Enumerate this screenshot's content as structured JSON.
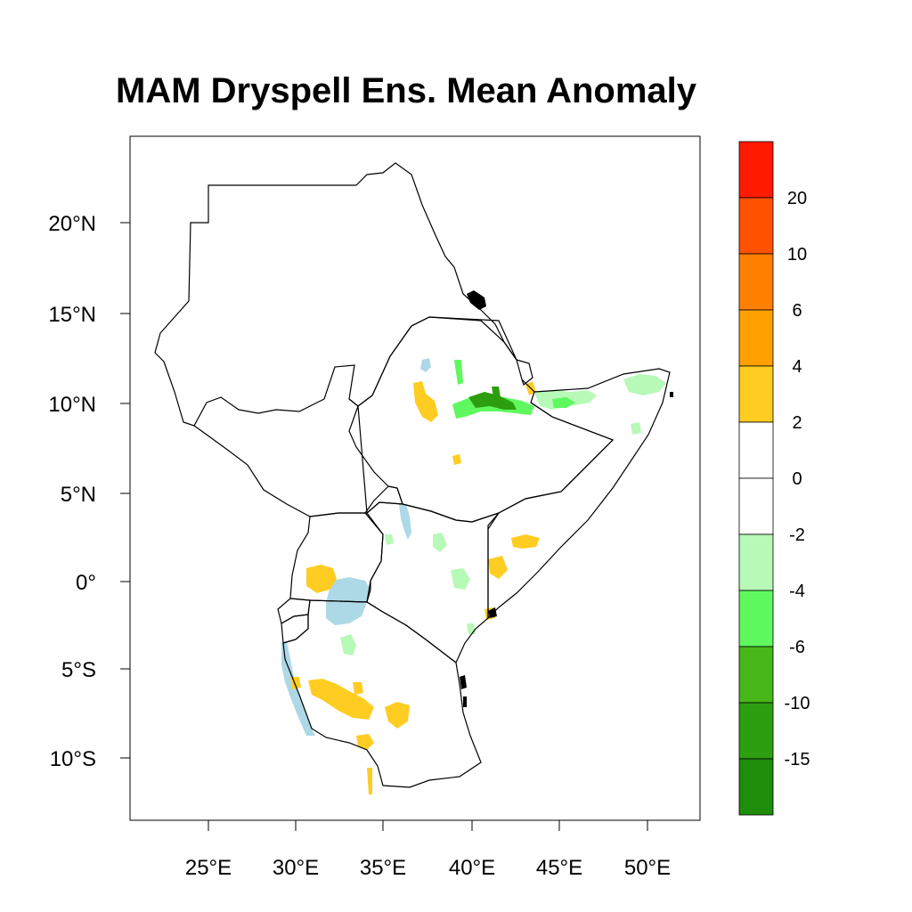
{
  "title": "MAM  Dryspell Ens. Mean Anomaly",
  "map": {
    "lat_ticks": [
      "20°N",
      "15°N",
      "10°N",
      "5°N",
      "0°",
      "5°S",
      "10°S"
    ],
    "lon_ticks": [
      "25°E",
      "30°E",
      "35°E",
      "40°E",
      "45°E",
      "50°E"
    ],
    "lon_range": [
      20.5,
      53
    ],
    "lat_range": [
      -13.5,
      25
    ]
  },
  "colorbar": {
    "labels": [
      "20",
      "10",
      "6",
      "4",
      "2",
      "0",
      "-2",
      "-4",
      "-6",
      "-10",
      "-15"
    ],
    "colors": [
      "#ff1a00",
      "#ff5200",
      "#ff8000",
      "#ff9f00",
      "#ffcc22",
      "#ffffff",
      "#ffffff",
      "#b7f9b7",
      "#5ff85f",
      "#47b817",
      "#2d9e0f",
      "#1f8c0a"
    ]
  },
  "colors": {
    "positive_small": "#ffcc22",
    "negative_small": "#b7f9b7",
    "negative_mid": "#5ff85f",
    "negative_large": "#2d9e0f",
    "lakes": "#add8e6",
    "outline": "#000000"
  }
}
